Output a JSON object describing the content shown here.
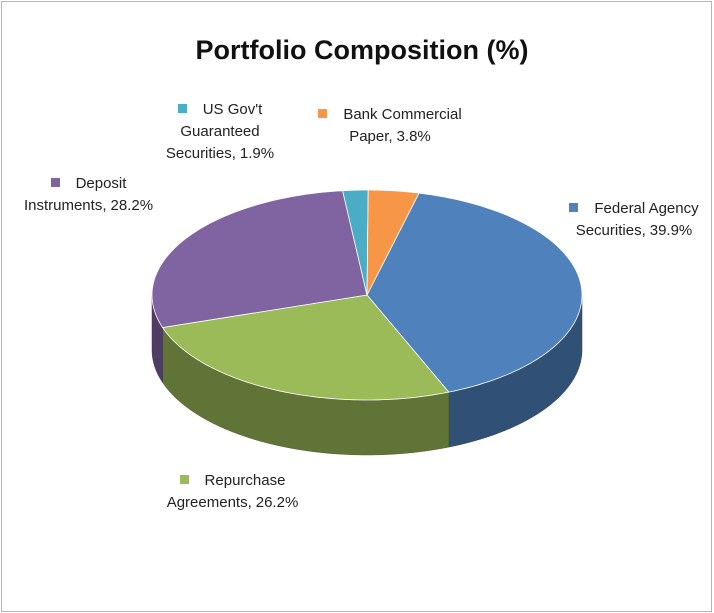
{
  "chart_data": {
    "type": "pie",
    "title": "Portfolio Composition  (%)",
    "categories": [
      "Federal Agency Securities",
      "Repurchase Agreements",
      "Deposit Instruments",
      "US Gov't Guaranteed Securities",
      "Bank Commercial Paper"
    ],
    "values": [
      39.9,
      26.2,
      28.2,
      1.9,
      3.8
    ],
    "value_labels": [
      "39.9%",
      "26.2%",
      "28.2%",
      "1.9%",
      "3.8%"
    ],
    "label_separator": ",",
    "colors": [
      "#4f81bd",
      "#9bbb59",
      "#8064a2",
      "#4bacc6",
      "#f79646"
    ]
  }
}
